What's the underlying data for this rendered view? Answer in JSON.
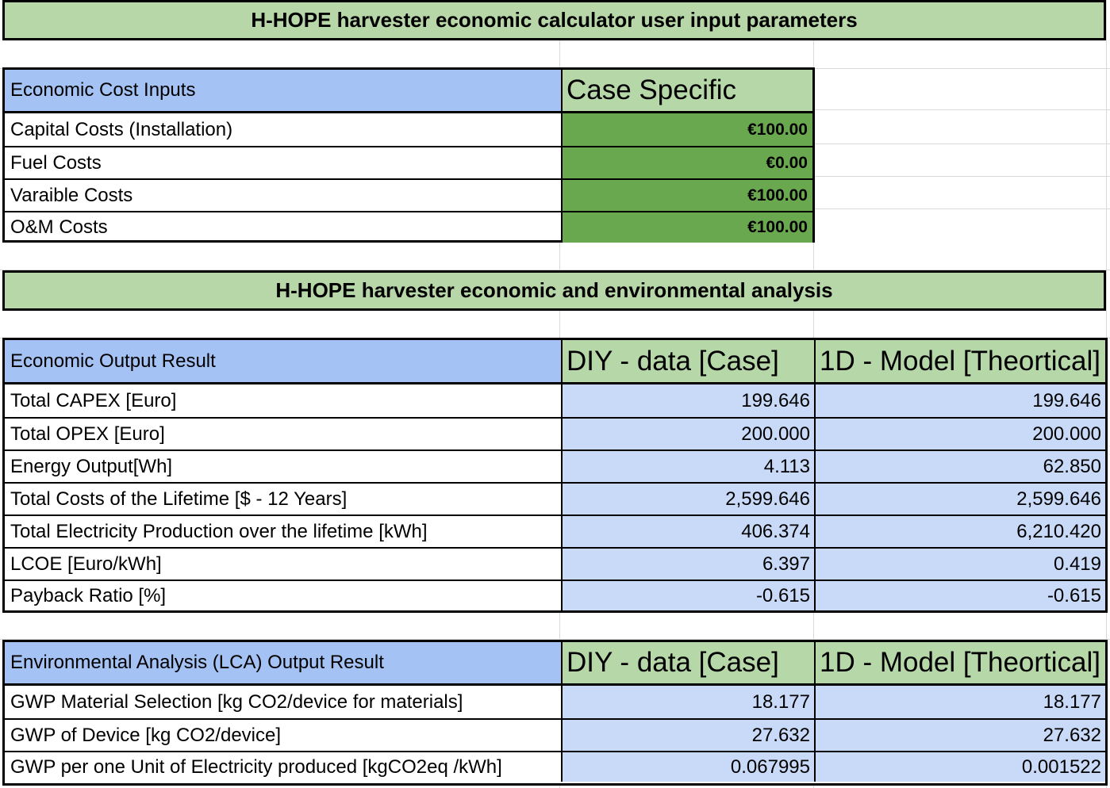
{
  "input_section": {
    "title": "H-HOPE harvester  economic calculator user input parameters",
    "header": {
      "label": "Economic Cost Inputs",
      "col1": "Case Specific"
    },
    "rows": [
      {
        "label": "Capital Costs (Installation)",
        "value": "€100.00"
      },
      {
        "label": "Fuel Costs",
        "value": "€0.00"
      },
      {
        "label": "Varaible Costs",
        "value": "€100.00"
      },
      {
        "label": "O&M Costs",
        "value": "€100.00"
      }
    ]
  },
  "analysis_section": {
    "title": "H-HOPE harvester economic and environmental analysis"
  },
  "economic_output": {
    "header": {
      "label": "Economic Output Result",
      "col1": "DIY - data [Case]",
      "col2": "1D - Model [Theortical]"
    },
    "rows": [
      {
        "label": "Total CAPEX [Euro]",
        "diy": "199.646",
        "model": "199.646"
      },
      {
        "label": "Total OPEX [Euro]",
        "diy": "200.000",
        "model": "200.000"
      },
      {
        "label": "Energy Output[Wh]",
        "diy": "4.113",
        "model": "62.850"
      },
      {
        "label": "Total Costs of the Lifetime [$ - 12 Years]",
        "diy": "2,599.646",
        "model": "2,599.646"
      },
      {
        "label": "Total Electricity Production over the lifetime [kWh]",
        "diy": "406.374",
        "model": "6,210.420"
      },
      {
        "label": "LCOE [Euro/kWh]",
        "diy": "6.397",
        "model": "0.419"
      },
      {
        "label": "Payback Ratio [%]",
        "diy": "-0.615",
        "model": "-0.615"
      }
    ]
  },
  "environmental_output": {
    "header": {
      "label": "Environmental Analysis (LCA) Output Result",
      "col1": "DIY - data [Case]",
      "col2": "1D - Model [Theortical]"
    },
    "rows": [
      {
        "label": "GWP Material Selection [kg CO2/device for materials]",
        "diy": "18.177",
        "model": "18.177"
      },
      {
        "label": "GWP of Device [kg CO2/device]",
        "diy": "27.632",
        "model": "27.632"
      },
      {
        "label": "GWP per one Unit of Electricity produced [kgCO2eq /kWh]",
        "diy": "0.067995",
        "model": "0.001522"
      }
    ]
  },
  "colors": {
    "banner_green": "#b7d7a8",
    "header_blue": "#a4c2f4",
    "header_green": "#b6d7a8",
    "input_value_green": "#6aa84f",
    "output_value_blue": "#c9daf8",
    "gridline": "#d9d9d9"
  }
}
